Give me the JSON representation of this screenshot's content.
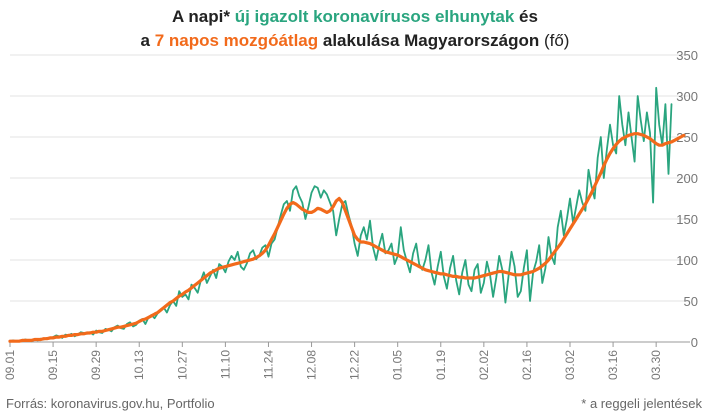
{
  "title": {
    "line1_a": "A napi* ",
    "line1_b": "új igazolt koronavírusos elhunytak",
    "line1_c": " és",
    "line2_a": "a ",
    "line2_b": "7 napos mozgóátlag",
    "line2_c": " alakulása Magyarországon",
    "line2_d": " (fő)"
  },
  "footer": {
    "source": "Forrás: koronavirus.gov.hu, Portfolio",
    "note": "* a reggeli jelentések"
  },
  "colors": {
    "daily": "#2aa57f",
    "average": "#f26a1b",
    "grid": "#e3e3e3",
    "baseline": "#999999"
  },
  "chart_data": {
    "type": "line",
    "title": "A napi* új igazolt koronavírusos elhunytak és a 7 napos mozgóátlag alakulása Magyarországon (fő)",
    "xlabel": "",
    "ylabel": "",
    "ylim": [
      0,
      350
    ],
    "y_ticks": [
      0,
      50,
      100,
      150,
      200,
      250,
      300,
      350
    ],
    "y_axis_side": "right",
    "grid": true,
    "legend": "none",
    "x_tick_labels": [
      "09.01",
      "09.15",
      "09.29",
      "10.13",
      "10.27",
      "11.10",
      "11.24",
      "12.08",
      "12.22",
      "01.05",
      "01.19",
      "02.02",
      "02.16",
      "03.02",
      "03.16",
      "03.30"
    ],
    "x_tick_day_index": [
      0,
      14,
      28,
      42,
      56,
      70,
      84,
      98,
      112,
      126,
      140,
      154,
      168,
      182,
      196,
      210
    ],
    "num_days": 222,
    "series": [
      {
        "name": "új igazolt koronavírusos elhunytak",
        "color": "#2aa57f",
        "values": [
          1,
          2,
          1,
          1,
          2,
          3,
          2,
          1,
          3,
          2,
          4,
          3,
          5,
          4,
          6,
          8,
          7,
          5,
          9,
          8,
          10,
          7,
          9,
          12,
          11,
          10,
          12,
          9,
          14,
          12,
          11,
          16,
          15,
          13,
          18,
          20,
          17,
          16,
          22,
          24,
          19,
          21,
          26,
          28,
          22,
          30,
          33,
          29,
          35,
          38,
          42,
          36,
          45,
          50,
          44,
          62,
          55,
          58,
          52,
          70,
          66,
          60,
          75,
          85,
          72,
          80,
          88,
          78,
          95,
          92,
          85,
          98,
          105,
          100,
          110,
          92,
          88,
          96,
          108,
          112,
          101,
          105,
          115,
          118,
          104,
          120,
          125,
          140,
          155,
          168,
          172,
          160,
          185,
          190,
          178,
          170,
          150,
          165,
          182,
          190,
          188,
          176,
          185,
          180,
          170,
          160,
          130,
          150,
          168,
          172,
          155,
          142,
          120,
          105,
          130,
          140,
          125,
          148,
          115,
          100,
          118,
          132,
          108,
          112,
          120,
          95,
          105,
          140,
          112,
          98,
          85,
          108,
          120,
          95,
          88,
          100,
          118,
          85,
          70,
          92,
          110,
          80,
          65,
          90,
          105,
          75,
          58,
          85,
          100,
          70,
          62,
          88,
          95,
          60,
          72,
          98,
          82,
          55,
          78,
          105,
          88,
          48,
          80,
          110,
          92,
          55,
          62,
          90,
          112,
          50,
          85,
          98,
          118,
          72,
          90,
          128,
          105,
          95,
          140,
          160,
          130,
          150,
          175,
          145,
          165,
          185,
          170,
          160,
          210,
          190,
          175,
          225,
          250,
          200,
          235,
          265,
          240,
          230,
          300,
          265,
          240,
          280,
          250,
          220,
          300,
          270,
          245,
          280,
          255,
          170,
          310,
          265,
          240,
          290,
          205,
          290
        ],
        "note": "approximate values read from the daily series"
      },
      {
        "name": "7 napos mozgóátlag",
        "color": "#f26a1b",
        "values": [
          1,
          1,
          1,
          1,
          2,
          2,
          2,
          2,
          3,
          3,
          3,
          4,
          4,
          5,
          5,
          6,
          6,
          7,
          7,
          8,
          8,
          9,
          9,
          10,
          10,
          11,
          11,
          12,
          12,
          13,
          13,
          14,
          15,
          16,
          17,
          18,
          18,
          19,
          20,
          21,
          22,
          23,
          25,
          27,
          28,
          30,
          32,
          34,
          36,
          39,
          42,
          45,
          48,
          50,
          53,
          56,
          58,
          61,
          63,
          66,
          69,
          72,
          75,
          78,
          81,
          84,
          86,
          88,
          90,
          91,
          92,
          93,
          94,
          95,
          96,
          97,
          98,
          99,
          100,
          101,
          103,
          105,
          108,
          112,
          118,
          125,
          132,
          140,
          148,
          156,
          163,
          168,
          170,
          168,
          165,
          162,
          160,
          158,
          158,
          160,
          163,
          162,
          160,
          158,
          160,
          165,
          172,
          175,
          170,
          160,
          150,
          140,
          130,
          125,
          122,
          122,
          121,
          120,
          118,
          116,
          114,
          112,
          110,
          109,
          108,
          107,
          106,
          104,
          102,
          100,
          98,
          96,
          94,
          92,
          90,
          88,
          87,
          86,
          85,
          84,
          83,
          83,
          82,
          81,
          80,
          80,
          79,
          79,
          78,
          78,
          78,
          78,
          79,
          80,
          81,
          82,
          83,
          84,
          85,
          86,
          86,
          85,
          84,
          83,
          82,
          82,
          82,
          83,
          84,
          85,
          86,
          88,
          90,
          93,
          96,
          100,
          105,
          110,
          115,
          120,
          126,
          132,
          138,
          144,
          150,
          156,
          162,
          168,
          175,
          182,
          190,
          198,
          206,
          215,
          223,
          230,
          236,
          241,
          245,
          248,
          250,
          252,
          253,
          254,
          254,
          253,
          252,
          250,
          248,
          245,
          242,
          240,
          240,
          242,
          243,
          244,
          246,
          248,
          250,
          252
        ],
        "note": "approximate values read from the moving average series"
      }
    ]
  }
}
